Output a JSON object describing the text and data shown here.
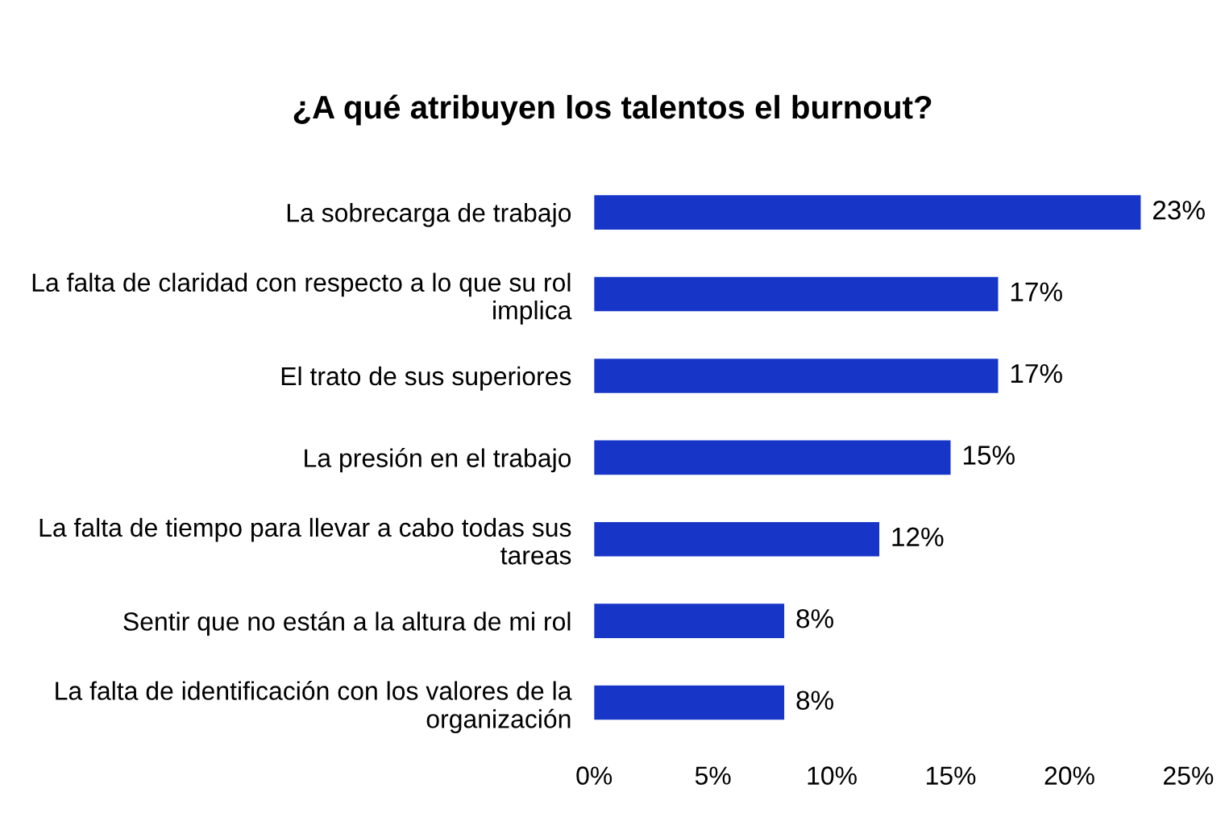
{
  "chart_data": {
    "type": "bar",
    "orientation": "horizontal",
    "title": "¿A qué atribuyen los talentos el burnout?",
    "categories": [
      "La sobrecarga de trabajo",
      "La falta de claridad con respecto a lo que su rol implica",
      "El trato de sus superiores",
      "La presión en el trabajo",
      "La falta de tiempo para llevar a cabo todas sus tareas",
      "Sentir que no están a la altura de mi rol",
      "La falta de identificación con los valores de la organización"
    ],
    "values": [
      23,
      17,
      17,
      15,
      12,
      8,
      8
    ],
    "value_labels": [
      "23%",
      "17%",
      "17%",
      "15%",
      "12%",
      "8%",
      "8%"
    ],
    "color": "#1736c8",
    "xlim": [
      0,
      25
    ],
    "xticks": [
      {
        "value": 0,
        "label": "0%"
      },
      {
        "value": 5,
        "label": "5%"
      },
      {
        "value": 10,
        "label": "10%"
      },
      {
        "value": 15,
        "label": "15%"
      },
      {
        "value": 20,
        "label": "20%"
      },
      {
        "value": 25,
        "label": "25%"
      }
    ],
    "grid": false
  }
}
